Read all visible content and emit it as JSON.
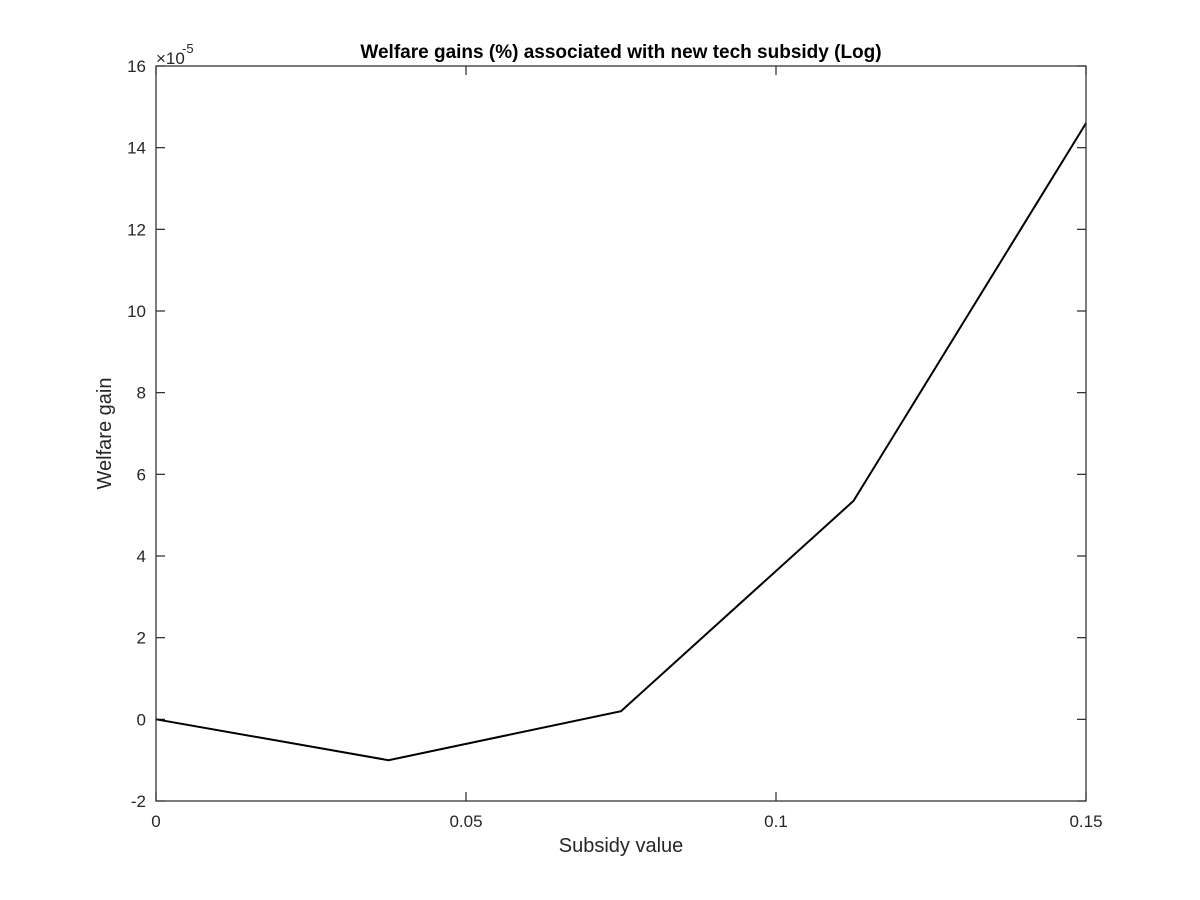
{
  "chart_data": {
    "type": "line",
    "title": "Welfare gains (%) associated with new tech subsidy (Log)",
    "xlabel": "Subsidy value",
    "ylabel": "Welfare gain",
    "y_exponent": {
      "base": "×10",
      "power": "-5"
    },
    "xlim": [
      0,
      0.15
    ],
    "ylim": [
      -2,
      16
    ],
    "x_ticks": [
      0,
      0.05,
      0.1,
      0.15
    ],
    "x_tick_labels": [
      "0",
      "0.05",
      "0.1",
      "0.15"
    ],
    "y_ticks": [
      -2,
      0,
      2,
      4,
      6,
      8,
      10,
      12,
      14,
      16
    ],
    "y_tick_labels": [
      "-2",
      "0",
      "2",
      "4",
      "6",
      "8",
      "10",
      "12",
      "14",
      "16"
    ],
    "grid": false,
    "series": [
      {
        "x": [
          0,
          0.0375,
          0.075,
          0.1125,
          0.15
        ],
        "y": [
          0,
          -1.0,
          0.2,
          5.35,
          14.6
        ],
        "color": "#000000"
      }
    ]
  }
}
